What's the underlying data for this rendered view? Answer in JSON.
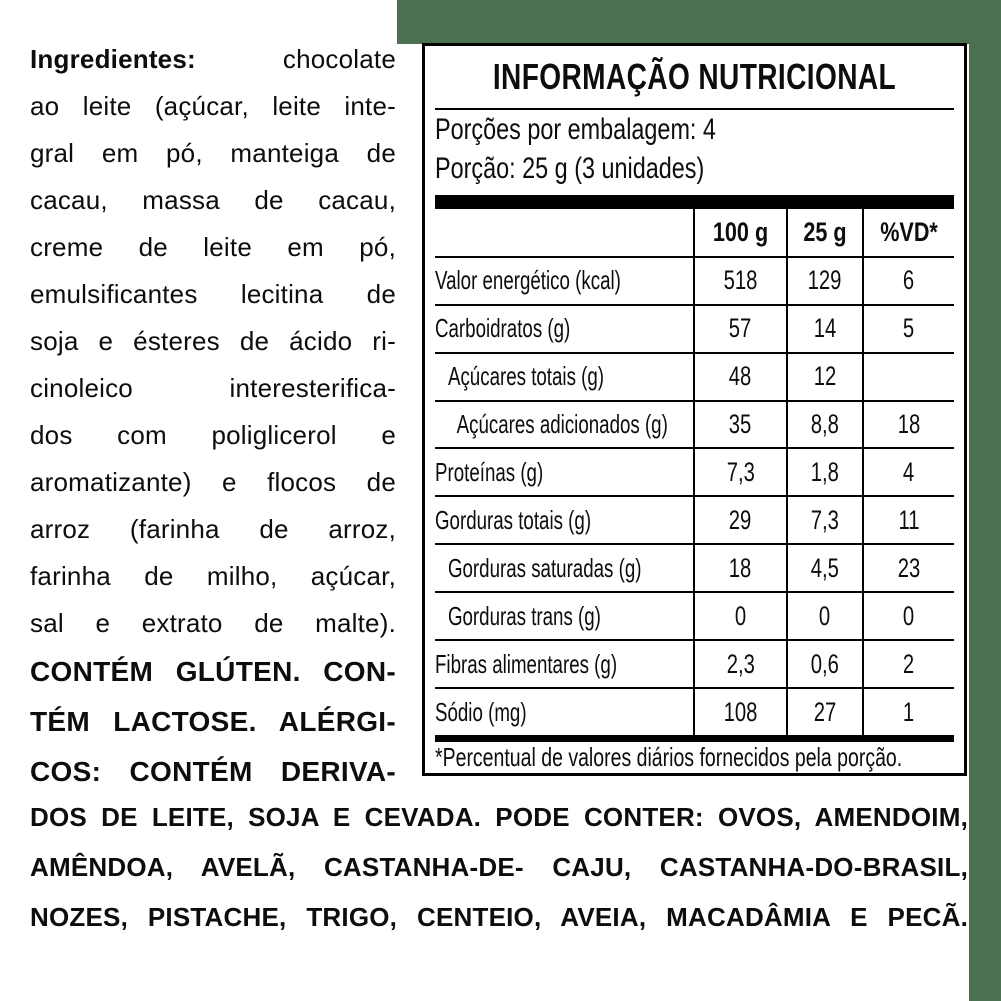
{
  "colors": {
    "package_green": "#4b7152",
    "label_background": "#ffffff",
    "text": "#000000"
  },
  "ingredients": {
    "heading": "Ingredientes:",
    "line1_rest": "chocolate",
    "lines": [
      "ao leite (açúcar, leite inte-",
      "gral em pó, manteiga de",
      "cacau, massa de cacau,",
      "creme de leite em pó,",
      "emulsificantes lecitina de",
      "soja e ésteres de ácido ri-",
      "cinoleico interesterifica-",
      "dos com poliglicerol e",
      "aromatizante) e flocos de",
      "arroz (farinha de arroz,",
      "farinha de milho, açúcar,",
      "sal e extrato de malte)."
    ],
    "allergen_column_lines": [
      "CONTÉM GLÚTEN. CON-",
      "TÉM LACTOSE. ALÉRGI-",
      "COS: CONTÉM DERIVA-"
    ],
    "allergen_full_lines": [
      "DOS DE LEITE, SOJA E CEVADA. PODE CONTER: OVOS, AMENDOIM,",
      "AMÊNDOA, AVELÃ, CASTANHA-DE- CAJU, CASTANHA-DO-BRASIL,",
      "NOZES, PISTACHE, TRIGO, CENTEIO, AVEIA, MACADÂMIA E PECÃ."
    ]
  },
  "nutrition_table": {
    "title": "INFORMAÇÃO NUTRICIONAL",
    "servings_per_package": "Porções por embalagem: 4",
    "serving_size": "Porção: 25 g (3 unidades)",
    "columns": [
      "100 g",
      "25 g",
      "%VD*"
    ],
    "rows": [
      {
        "label": "Valor energético (kcal)",
        "per100": "518",
        "per25": "129",
        "vd": "6"
      },
      {
        "label": "Carboidratos (g)",
        "per100": "57",
        "per25": "14",
        "vd": "5"
      },
      {
        "label": "Açúcares totais (g)",
        "per100": "48",
        "per25": "12",
        "vd": ""
      },
      {
        "label": "Açúcares adicionados (g)",
        "per100": "35",
        "per25": "8,8",
        "vd": "18"
      },
      {
        "label": "Proteínas (g)",
        "per100": "7,3",
        "per25": "1,8",
        "vd": "4"
      },
      {
        "label": "Gorduras totais (g)",
        "per100": "29",
        "per25": "7,3",
        "vd": "11"
      },
      {
        "label": "Gorduras saturadas (g)",
        "per100": "18",
        "per25": "4,5",
        "vd": "23"
      },
      {
        "label": "Gorduras trans (g)",
        "per100": "0",
        "per25": "0",
        "vd": "0"
      },
      {
        "label": "Fibras alimentares (g)",
        "per100": "2,3",
        "per25": "0,6",
        "vd": "2"
      },
      {
        "label": "Sódio (mg)",
        "per100": "108",
        "per25": "27",
        "vd": "1"
      }
    ],
    "footnote": "*Percentual de valores diários fornecidos pela porção."
  }
}
